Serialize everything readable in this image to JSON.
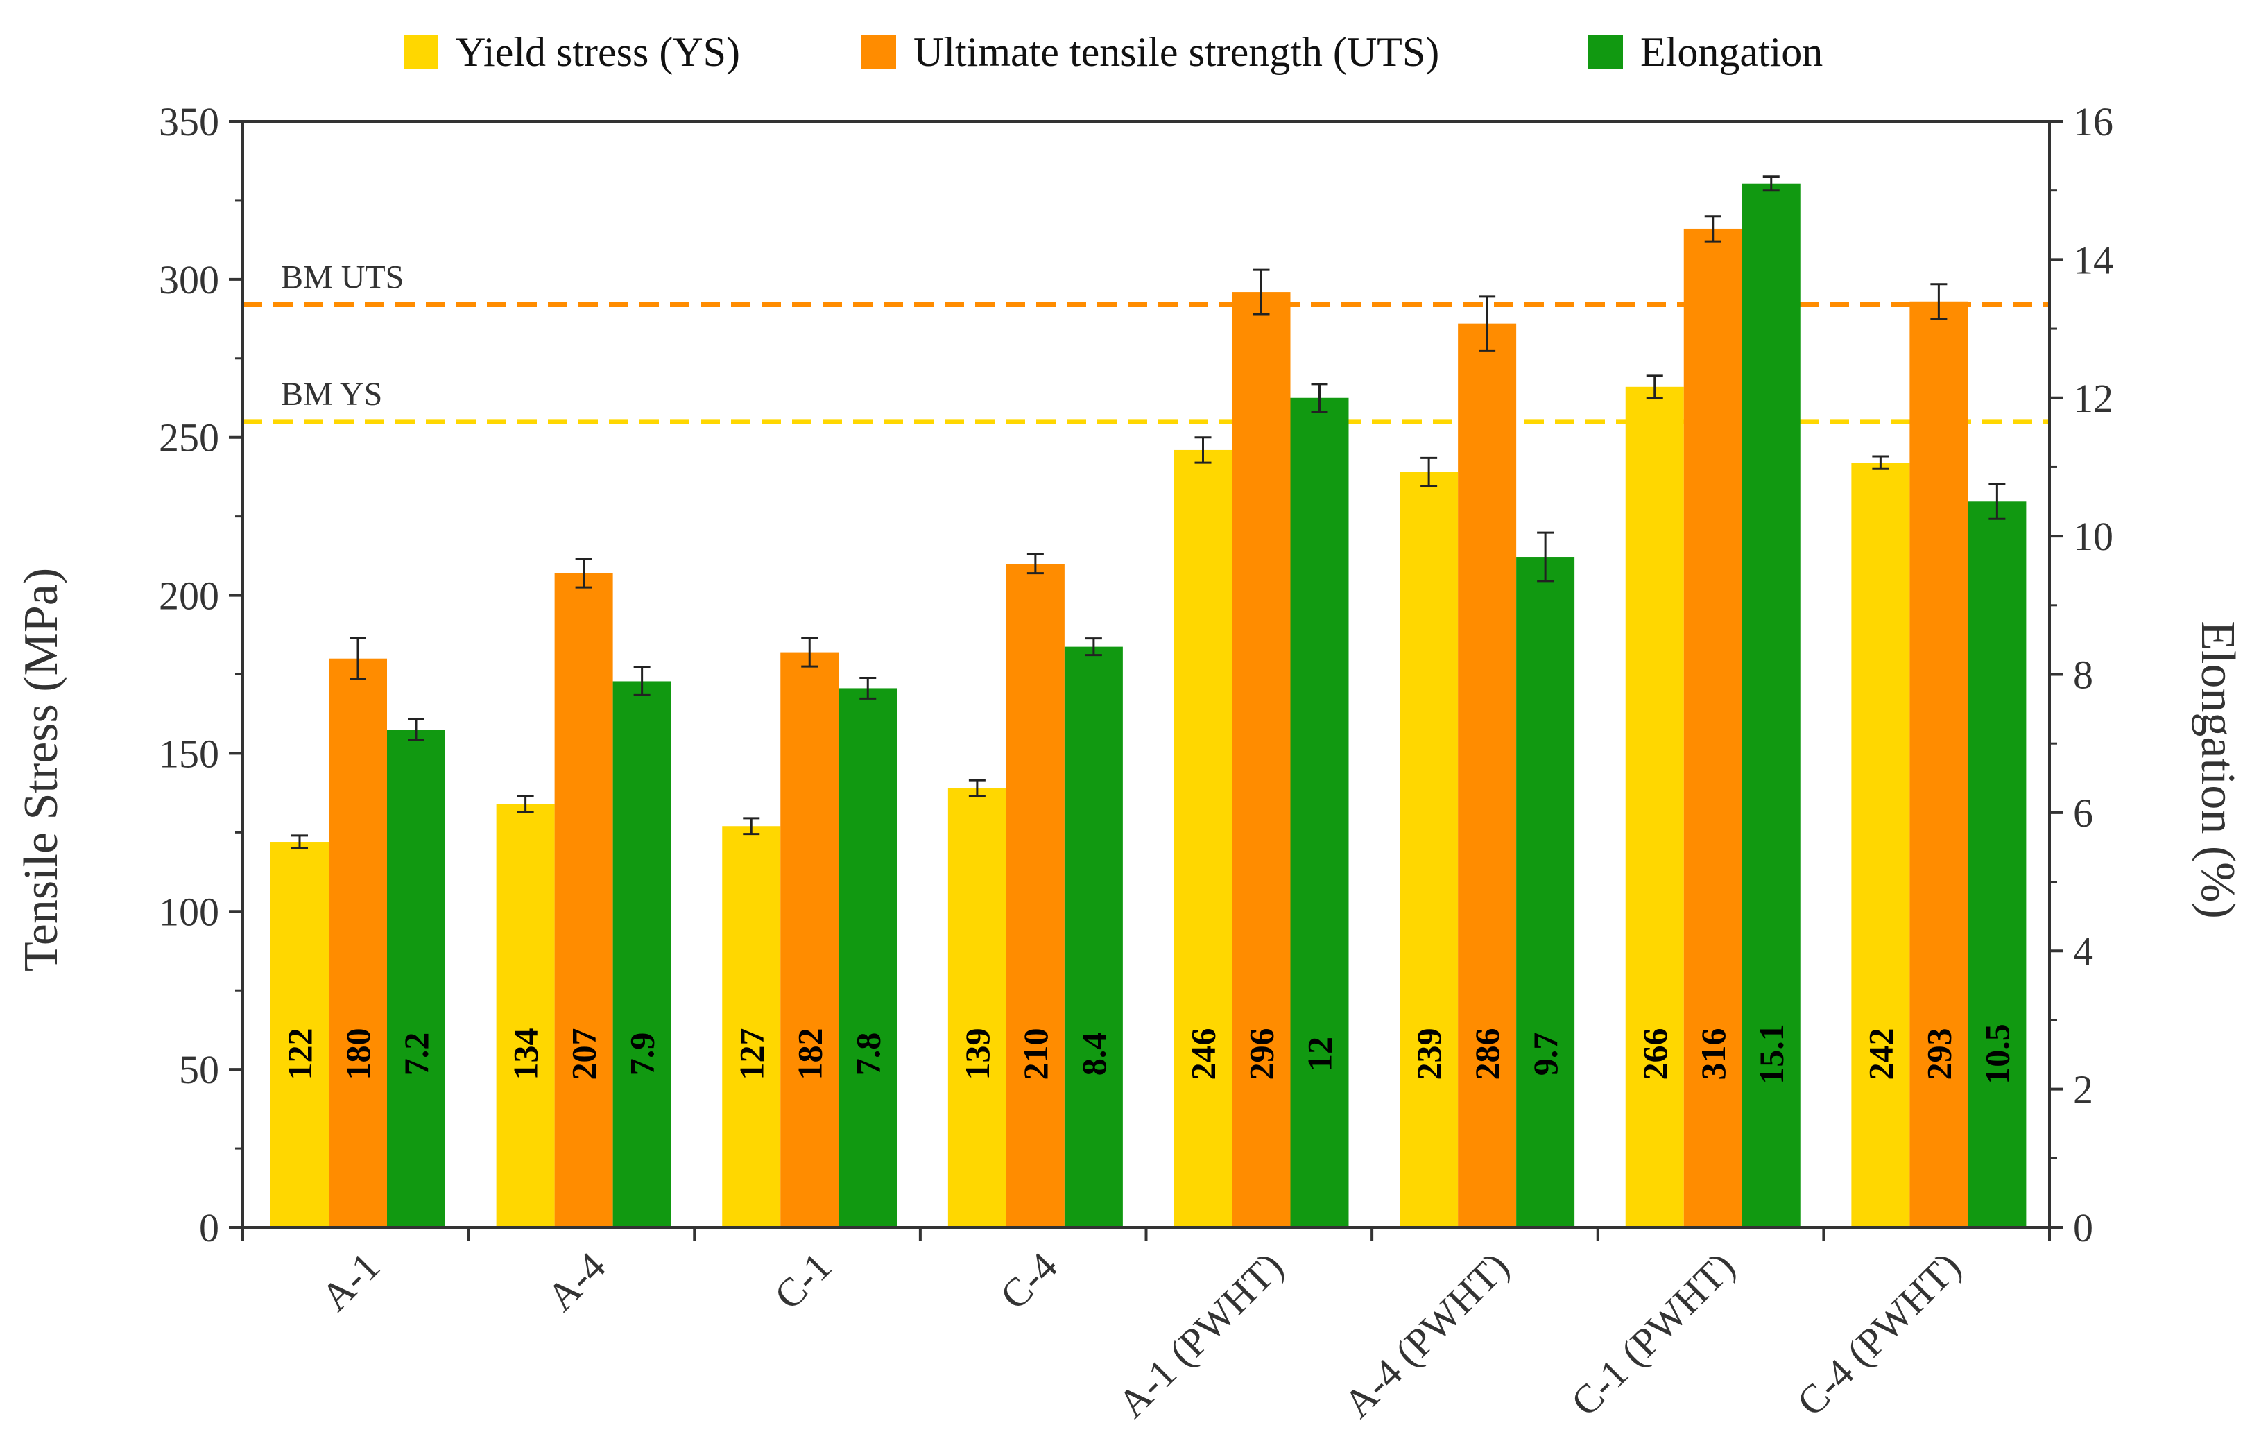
{
  "chart_data": {
    "type": "bar",
    "categories": [
      "A-1",
      "A-4",
      "C-1",
      "C-4",
      "A-1 (PWHT)",
      "A-4 (PWHT)",
      "C-1 (PWHT)",
      "C-4 (PWHT)"
    ],
    "series": [
      {
        "name": "Yield stress (YS)",
        "axis": "left",
        "color": "#FFD700",
        "values": [
          122,
          134,
          127,
          139,
          246,
          239,
          266,
          242
        ],
        "labels": [
          "122",
          "134",
          "127",
          "139",
          "246",
          "239",
          "266",
          "242"
        ],
        "errors": [
          2,
          2.5,
          2.5,
          2.5,
          4,
          4.5,
          3.5,
          2
        ]
      },
      {
        "name": "Ultimate tensile strength (UTS)",
        "axis": "left",
        "color": "#FF8C00",
        "values": [
          180,
          207,
          182,
          210,
          296,
          286,
          316,
          293
        ],
        "labels": [
          "180",
          "207",
          "182",
          "210",
          "296",
          "286",
          "316",
          "293"
        ],
        "errors": [
          6.5,
          4.5,
          4.5,
          3,
          7,
          8.5,
          4,
          5.5
        ]
      },
      {
        "name": "Elongation",
        "axis": "right",
        "color": "#119911",
        "values": [
          7.2,
          7.9,
          7.8,
          8.4,
          12,
          9.7,
          15.1,
          10.5
        ],
        "labels": [
          "7.2",
          "7.9",
          "7.8",
          "8.4",
          "12",
          "9.7",
          "15.1",
          "10.5"
        ],
        "errors": [
          0.15,
          0.2,
          0.15,
          0.12,
          0.2,
          0.35,
          0.1,
          0.25
        ]
      }
    ],
    "ylabel": "Tensile Stress (MPa)",
    "y2label": "Elongation (%)",
    "ylim": [
      0,
      350
    ],
    "yticks": [
      0,
      50,
      100,
      150,
      200,
      250,
      300,
      350
    ],
    "y2lim": [
      0,
      16
    ],
    "y2ticks": [
      0,
      2,
      4,
      6,
      8,
      10,
      12,
      14,
      16
    ],
    "reference_lines": [
      {
        "label": "BM UTS",
        "value": 292,
        "color": "#FF8C00"
      },
      {
        "label": "BM YS",
        "value": 255,
        "color": "#FFD700"
      }
    ],
    "legend_position": "top"
  }
}
